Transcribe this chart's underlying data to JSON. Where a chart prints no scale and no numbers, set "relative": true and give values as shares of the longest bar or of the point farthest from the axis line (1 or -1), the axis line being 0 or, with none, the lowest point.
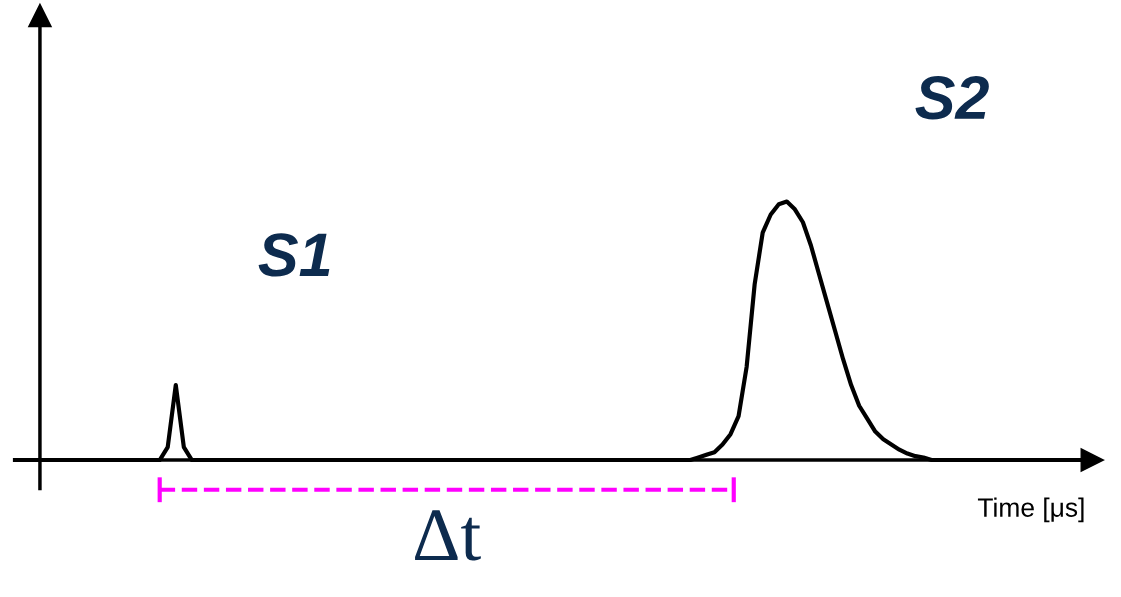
{
  "chart_data": {
    "type": "line",
    "relative": true,
    "xlabel": "Time [μs]",
    "categories": [
      null,
      null,
      null,
      null,
      null,
      null,
      null,
      null,
      null,
      null,
      null,
      null,
      null,
      null,
      null,
      null,
      null,
      null,
      null,
      null,
      null,
      null,
      null,
      null,
      null,
      null,
      null,
      null,
      null,
      null,
      null,
      null,
      null,
      null,
      null,
      null,
      null,
      null,
      null,
      null,
      null,
      null,
      null,
      null,
      null,
      null,
      null,
      null,
      null,
      null,
      null,
      null,
      null,
      null,
      null,
      null,
      null,
      null,
      null,
      null,
      null,
      null,
      null,
      null,
      null,
      null,
      null,
      null,
      null,
      null,
      null,
      null,
      null,
      null,
      null,
      null,
      null,
      null,
      null,
      null,
      null,
      null,
      null,
      null,
      null,
      null,
      null,
      null,
      null,
      null,
      null,
      null,
      null,
      null,
      null,
      null,
      null,
      null,
      null,
      null,
      null,
      null,
      null,
      null,
      null,
      null,
      null,
      null,
      null,
      null,
      null,
      null,
      null,
      null,
      null,
      null,
      null,
      null,
      null,
      null,
      null,
      null,
      null,
      null,
      null,
      null,
      null,
      null,
      null,
      null,
      null,
      null,
      null,
      null,
      null
    ],
    "series": [
      {
        "color": "#000000",
        "values": [
          0,
          0,
          0,
          0,
          0,
          0,
          0,
          0,
          0,
          0,
          0,
          0,
          0,
          0,
          0,
          0,
          0,
          0,
          0,
          0.05,
          0.29,
          0.05,
          0,
          0,
          0,
          0,
          0,
          0,
          0,
          0,
          0,
          0,
          0,
          0,
          0,
          0,
          0,
          0,
          0,
          0,
          0,
          0,
          0,
          0,
          0,
          0,
          0,
          0,
          0,
          0,
          0,
          0,
          0,
          0,
          0,
          0,
          0,
          0,
          0,
          0,
          0,
          0,
          0,
          0,
          0,
          0,
          0,
          0,
          0,
          0,
          0,
          0,
          0,
          0,
          0,
          0,
          0,
          0,
          0,
          0,
          0,
          0,
          0,
          0,
          0,
          0.01,
          0.02,
          0.03,
          0.06,
          0.1,
          0.17,
          0.36,
          0.68,
          0.88,
          0.95,
          0.99,
          1,
          0.97,
          0.92,
          0.83,
          0.72,
          0.61,
          0.5,
          0.39,
          0.29,
          0.21,
          0.16,
          0.11,
          0.08,
          0.06,
          0.04,
          0.025,
          0.015,
          0.01,
          0,
          0,
          0,
          0,
          0,
          0,
          0,
          0,
          0,
          0,
          0,
          0,
          0,
          0,
          0,
          0,
          0,
          0,
          0,
          0,
          0
        ]
      }
    ],
    "annotations": [
      "S1",
      "S2",
      "Δt"
    ],
    "legend": false,
    "marker": "none",
    "line_style": "solid"
  }
}
